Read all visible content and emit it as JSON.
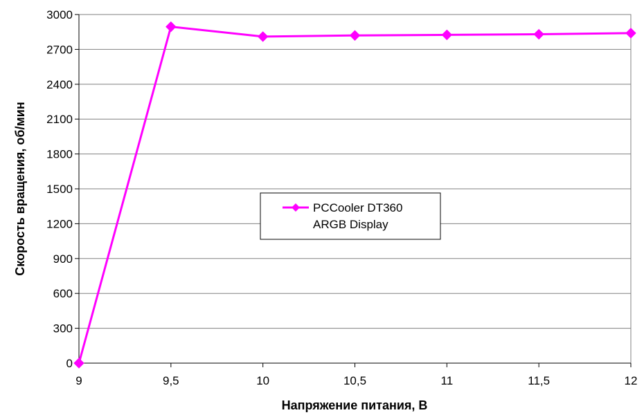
{
  "chart_data": {
    "type": "line",
    "title": "",
    "xlabel": "Напряжение питания, В",
    "ylabel": "Скорость вращения, об/мин",
    "xlim": [
      9,
      12
    ],
    "ylim": [
      0,
      3000
    ],
    "x_ticks": [
      9,
      9.5,
      10,
      10.5,
      11,
      11.5,
      12
    ],
    "x_tick_labels": [
      "9",
      "9,5",
      "10",
      "10,5",
      "11",
      "11,5",
      "12"
    ],
    "y_ticks": [
      0,
      300,
      600,
      900,
      1200,
      1500,
      1800,
      2100,
      2400,
      2700,
      3000
    ],
    "y_tick_labels": [
      "0",
      "300",
      "600",
      "900",
      "1200",
      "1500",
      "1800",
      "2100",
      "2400",
      "2700",
      "3000"
    ],
    "grid": "horizontal",
    "legend_position": "center",
    "series": [
      {
        "name": "PCCooler DT360 ARGB Display",
        "legend_lines": [
          "PCCooler DT360",
          "ARGB Display"
        ],
        "color": "#ff00ff",
        "marker": "diamond",
        "x": [
          9,
          9.5,
          10,
          10.5,
          11,
          11.5,
          12
        ],
        "y": [
          0,
          2895,
          2810,
          2820,
          2825,
          2830,
          2840
        ]
      }
    ]
  }
}
